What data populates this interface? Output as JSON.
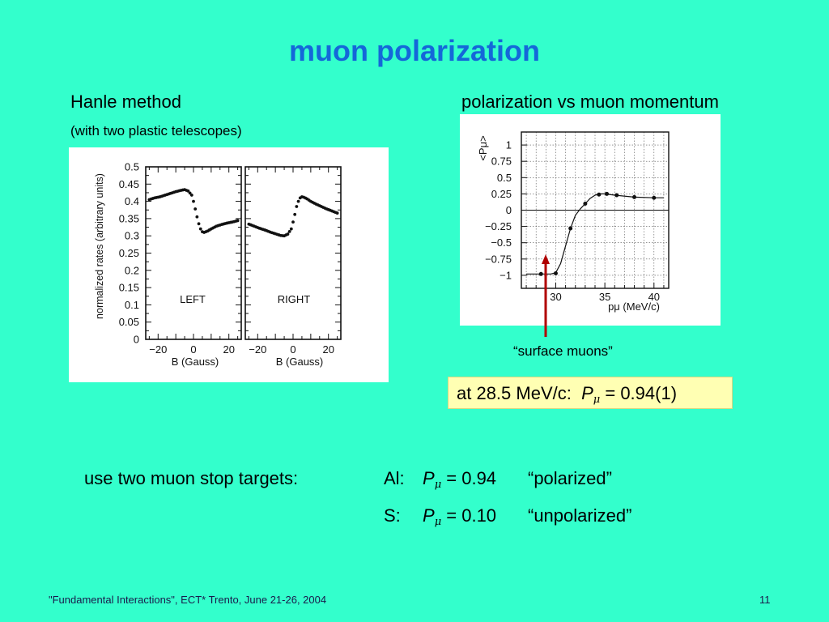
{
  "slide": {
    "title": "muon polarization",
    "left_heading": "Hanle method",
    "left_subheading": "(with two plastic telescopes)",
    "right_heading": "polarization vs muon momentum",
    "arrow_label": "“surface muons”",
    "result": {
      "prefix": "at 28.5 MeV/c:",
      "symbol": "P",
      "subscript": "μ",
      "value": "= 0.94(1)"
    },
    "targets": {
      "label": "use two muon stop targets:",
      "rows": [
        {
          "element": "Al:",
          "symbol": "P",
          "subscript": "μ",
          "value": "= 0.94",
          "state": "“polarized”"
        },
        {
          "element": "S:",
          "symbol": "P",
          "subscript": "μ",
          "value": "= 0.10",
          "state": "“unpolarized”"
        }
      ]
    },
    "footer_left": "\"Fundamental Interactions\", ECT* Trento, June 21-26, 2004",
    "page_number": "11"
  },
  "colors": {
    "background": "#33FFCC",
    "title": "#1467D9",
    "result_box": "#FFFFB3",
    "arrow": "#B00000"
  },
  "chart_data": [
    {
      "type": "scatter",
      "panel": "LEFT",
      "panel_label": "LEFT",
      "ylabel": "normalized rates (arbitrary units)",
      "xlabel": "B (Gauss)",
      "xlim": [
        -27,
        27
      ],
      "ylim": [
        0,
        0.5
      ],
      "xticks": [
        "−20",
        "0",
        "20"
      ],
      "xtick_values": [
        -20,
        0,
        20
      ],
      "yticks": [
        "0",
        "0.05",
        "0.1",
        "0.15",
        "0.2",
        "0.25",
        "0.3",
        "0.35",
        "0.4",
        "0.45",
        "0.5"
      ],
      "ytick_values": [
        0,
        0.05,
        0.1,
        0.15,
        0.2,
        0.25,
        0.3,
        0.35,
        0.4,
        0.45,
        0.5
      ],
      "x": [
        -25,
        -22,
        -19,
        -16,
        -13,
        -10,
        -7,
        -5,
        -3,
        -1,
        0,
        1,
        2,
        3,
        4,
        5,
        6,
        8,
        10,
        13,
        16,
        19,
        22,
        25
      ],
      "y": [
        0.405,
        0.41,
        0.413,
        0.418,
        0.423,
        0.428,
        0.432,
        0.434,
        0.43,
        0.418,
        0.4,
        0.378,
        0.355,
        0.335,
        0.32,
        0.312,
        0.31,
        0.314,
        0.32,
        0.328,
        0.333,
        0.337,
        0.34,
        0.344
      ]
    },
    {
      "type": "scatter",
      "panel": "RIGHT",
      "panel_label": "RIGHT",
      "xlabel": "B (Gauss)",
      "xlim": [
        -27,
        27
      ],
      "ylim": [
        0,
        0.5
      ],
      "xticks": [
        "−20",
        "0",
        "20"
      ],
      "xtick_values": [
        -20,
        0,
        20
      ],
      "x": [
        -25,
        -22,
        -19,
        -16,
        -13,
        -10,
        -7,
        -5,
        -3,
        -1,
        0,
        1,
        2,
        3,
        4,
        5,
        6,
        8,
        10,
        13,
        16,
        19,
        22,
        25
      ],
      "y": [
        0.334,
        0.328,
        0.322,
        0.317,
        0.311,
        0.306,
        0.301,
        0.3,
        0.305,
        0.32,
        0.34,
        0.362,
        0.385,
        0.4,
        0.41,
        0.413,
        0.412,
        0.407,
        0.4,
        0.392,
        0.385,
        0.378,
        0.372,
        0.366
      ]
    },
    {
      "type": "line",
      "ylabel": "<Pμ>",
      "xlabel": "pμ (MeV/c)",
      "xlim": [
        26.5,
        41.5
      ],
      "ylim": [
        -1.2,
        1.2
      ],
      "xticks": [
        "30",
        "35",
        "40"
      ],
      "xtick_values": [
        30,
        35,
        40
      ],
      "yticks": [
        "−1",
        "−0.75",
        "−0.5",
        "−0.25",
        "0",
        "0.25",
        "0.5",
        "0.75",
        "1"
      ],
      "ytick_values": [
        -1,
        -0.75,
        -0.5,
        -0.25,
        0,
        0.25,
        0.5,
        0.75,
        1
      ],
      "grid": true,
      "points": {
        "x": [
          28.5,
          30,
          31.5,
          33,
          34.4,
          35.2,
          36.2,
          38,
          40
        ],
        "y": [
          -0.98,
          -0.97,
          -0.28,
          0.1,
          0.24,
          0.25,
          0.23,
          0.2,
          0.19
        ]
      },
      "curve": {
        "x": [
          27,
          28.5,
          29.5,
          30,
          30.5,
          31,
          31.5,
          32,
          32.5,
          33,
          33.5,
          34,
          34.5,
          35,
          36,
          38,
          40,
          41
        ],
        "y": [
          -0.98,
          -0.98,
          -0.98,
          -0.96,
          -0.82,
          -0.55,
          -0.28,
          -0.08,
          0.02,
          0.1,
          0.18,
          0.23,
          0.25,
          0.25,
          0.23,
          0.2,
          0.19,
          0.19
        ]
      }
    }
  ]
}
